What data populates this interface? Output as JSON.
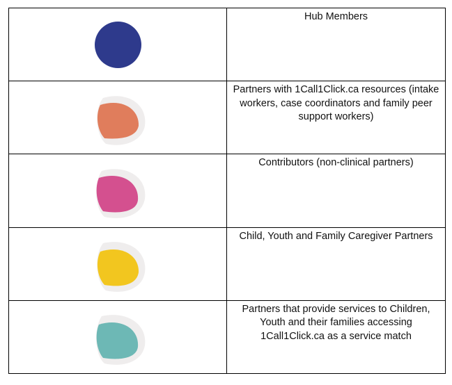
{
  "rows": [
    {
      "icon": "navy-circle-icon",
      "color": "#2e3a8c",
      "label": "Hub Members"
    },
    {
      "icon": "orange-leaf-icon",
      "color": "#e07d5c",
      "label": "Partners with 1Call1Click.ca resources (intake workers, case coordinators and family peer support workers)"
    },
    {
      "icon": "magenta-leaf-icon",
      "color": "#d4508f",
      "label": "Contributors (non-clinical partners)"
    },
    {
      "icon": "yellow-leaf-icon",
      "color": "#f2c61f",
      "label": "Child, Youth and Family Caregiver Partners"
    },
    {
      "icon": "teal-leaf-icon",
      "color": "#6db8b5",
      "label": "Partners that provide services to Children, Youth and their families accessing 1Call1Click.ca as a service match"
    }
  ]
}
